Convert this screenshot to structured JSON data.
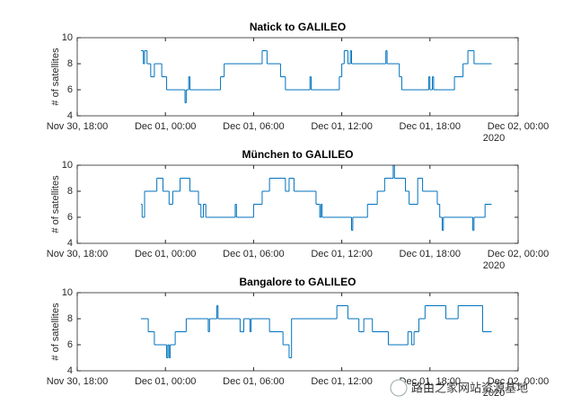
{
  "chart_data": [
    {
      "type": "line",
      "step": "post",
      "title": "Natick to GALILEO",
      "y_label": "# of satellites",
      "x_secondary_label": "2020",
      "xlim": [
        "2020-11-30T18:00",
        "2020-12-02T00:00"
      ],
      "xticks": [
        {
          "value": "2020-11-30T18:00",
          "label": "Nov 30, 18:00"
        },
        {
          "value": "2020-12-01T00:00",
          "label": "Dec 01, 00:00"
        },
        {
          "value": "2020-12-01T06:00",
          "label": "Dec 01, 06:00"
        },
        {
          "value": "2020-12-01T12:00",
          "label": "Dec 01, 12:00"
        },
        {
          "value": "2020-12-01T18:00",
          "label": "Dec 01, 18:00"
        },
        {
          "value": "2020-12-02T00:00",
          "label": "Dec 02, 00:00"
        }
      ],
      "ylim": [
        4,
        10
      ],
      "yticks": [
        4,
        6,
        8,
        10
      ],
      "grid": false,
      "color": "#0072bd",
      "x": [
        "2020-11-30T22:20",
        "2020-11-30T22:30",
        "2020-11-30T22:35",
        "2020-11-30T22:45",
        "2020-11-30T23:00",
        "2020-11-30T23:15",
        "2020-11-30T23:45",
        "2020-12-01T00:05",
        "2020-12-01T01:20",
        "2020-12-01T01:25",
        "2020-12-01T01:35",
        "2020-12-01T01:40",
        "2020-12-01T03:45",
        "2020-12-01T04:00",
        "2020-12-01T06:35",
        "2020-12-01T06:55",
        "2020-12-01T07:50",
        "2020-12-01T08:10",
        "2020-12-01T09:50",
        "2020-12-01T09:55",
        "2020-12-01T11:50",
        "2020-12-01T12:00",
        "2020-12-01T12:10",
        "2020-12-01T12:25",
        "2020-12-01T12:35",
        "2020-12-01T12:40",
        "2020-12-01T15:00",
        "2020-12-01T15:05",
        "2020-12-01T15:55",
        "2020-12-01T16:05",
        "2020-12-01T17:55",
        "2020-12-01T18:00",
        "2020-12-01T18:10",
        "2020-12-01T18:15",
        "2020-12-01T19:40",
        "2020-12-01T20:15",
        "2020-12-01T20:35",
        "2020-12-01T21:00",
        "2020-12-01T22:10"
      ],
      "values": [
        9,
        8,
        9,
        8,
        7,
        8,
        7,
        6,
        5,
        6,
        7,
        6,
        7,
        8,
        9,
        8,
        7,
        6,
        7,
        6,
        7,
        8,
        9,
        8,
        9,
        8,
        9,
        8,
        7,
        6,
        7,
        6,
        7,
        6,
        7,
        8,
        9,
        8,
        8
      ]
    },
    {
      "type": "line",
      "step": "post",
      "title": "München to GALILEO",
      "y_label": "# of satellites",
      "x_secondary_label": "2020",
      "xlim": [
        "2020-11-30T18:00",
        "2020-12-02T00:00"
      ],
      "xticks": [
        {
          "value": "2020-11-30T18:00",
          "label": "Nov 30, 18:00"
        },
        {
          "value": "2020-12-01T00:00",
          "label": "Dec 01, 00:00"
        },
        {
          "value": "2020-12-01T06:00",
          "label": "Dec 01, 06:00"
        },
        {
          "value": "2020-12-01T12:00",
          "label": "Dec 01, 12:00"
        },
        {
          "value": "2020-12-01T18:00",
          "label": "Dec 01, 18:00"
        },
        {
          "value": "2020-12-02T00:00",
          "label": "Dec 02, 00:00"
        }
      ],
      "ylim": [
        4,
        10
      ],
      "yticks": [
        4,
        6,
        8,
        10
      ],
      "grid": false,
      "color": "#0072bd",
      "x": [
        "2020-11-30T22:20",
        "2020-11-30T22:25",
        "2020-11-30T22:35",
        "2020-11-30T23:25",
        "2020-11-30T23:50",
        "2020-12-01T00:15",
        "2020-12-01T00:30",
        "2020-12-01T01:00",
        "2020-12-01T01:40",
        "2020-12-01T02:15",
        "2020-12-01T02:25",
        "2020-12-01T02:35",
        "2020-12-01T02:45",
        "2020-12-01T04:45",
        "2020-12-01T04:50",
        "2020-12-01T06:00",
        "2020-12-01T06:35",
        "2020-12-01T07:05",
        "2020-12-01T08:10",
        "2020-12-01T08:25",
        "2020-12-01T08:45",
        "2020-12-01T10:15",
        "2020-12-01T10:30",
        "2020-12-01T10:35",
        "2020-12-01T10:40",
        "2020-12-01T12:40",
        "2020-12-01T12:45",
        "2020-12-01T13:45",
        "2020-12-01T14:25",
        "2020-12-01T14:55",
        "2020-12-01T15:30",
        "2020-12-01T15:35",
        "2020-12-01T16:20",
        "2020-12-01T16:35",
        "2020-12-01T17:10",
        "2020-12-01T17:30",
        "2020-12-01T18:30",
        "2020-12-01T18:40",
        "2020-12-01T18:50",
        "2020-12-01T18:55",
        "2020-12-01T20:55",
        "2020-12-01T21:00",
        "2020-12-01T21:45",
        "2020-12-01T22:10"
      ],
      "values": [
        7,
        6,
        8,
        9,
        8,
        7,
        8,
        9,
        8,
        7,
        6,
        7,
        6,
        7,
        6,
        7,
        8,
        9,
        8,
        9,
        8,
        7,
        6,
        7,
        6,
        5,
        6,
        7,
        8,
        9,
        10,
        9,
        8,
        7,
        9,
        8,
        7,
        6,
        5,
        6,
        5,
        6,
        7,
        7
      ]
    },
    {
      "type": "line",
      "step": "post",
      "title": "Bangalore to GALILEO",
      "y_label": "# of satellites",
      "x_secondary_label": "2020",
      "xlim": [
        "2020-11-30T18:00",
        "2020-12-02T00:00"
      ],
      "xticks": [
        {
          "value": "2020-11-30T18:00",
          "label": "Nov 30, 18:00"
        },
        {
          "value": "2020-12-01T00:00",
          "label": "Dec 01, 00:00"
        },
        {
          "value": "2020-12-01T06:00",
          "label": "Dec 01, 06:00"
        },
        {
          "value": "2020-12-01T12:00",
          "label": "Dec 01, 12:00"
        },
        {
          "value": "2020-12-01T18:00",
          "label": "Dec 01, 18:00"
        },
        {
          "value": "2020-12-02T00:00",
          "label": "Dec 02, 00:00"
        }
      ],
      "ylim": [
        4,
        10
      ],
      "yticks": [
        4,
        6,
        8,
        10
      ],
      "grid": false,
      "color": "#0072bd",
      "x": [
        "2020-11-30T22:20",
        "2020-11-30T22:50",
        "2020-11-30T23:15",
        "2020-12-01T00:05",
        "2020-12-01T00:10",
        "2020-12-01T00:15",
        "2020-12-01T00:20",
        "2020-12-01T00:40",
        "2020-12-01T01:25",
        "2020-12-01T02:55",
        "2020-12-01T03:00",
        "2020-12-01T03:30",
        "2020-12-01T03:35",
        "2020-12-01T05:05",
        "2020-12-01T05:20",
        "2020-12-01T05:45",
        "2020-12-01T05:50",
        "2020-12-01T07:05",
        "2020-12-01T08:00",
        "2020-12-01T08:25",
        "2020-12-01T08:35",
        "2020-12-01T11:40",
        "2020-12-01T12:25",
        "2020-12-01T13:10",
        "2020-12-01T13:30",
        "2020-12-01T14:05",
        "2020-12-01T15:10",
        "2020-12-01T16:30",
        "2020-12-01T16:45",
        "2020-12-01T16:55",
        "2020-12-01T17:15",
        "2020-12-01T17:40",
        "2020-12-01T19:05",
        "2020-12-01T19:55",
        "2020-12-01T21:35",
        "2020-12-01T22:10"
      ],
      "values": [
        8,
        7,
        6,
        5,
        6,
        5,
        6,
        7,
        8,
        7,
        8,
        9,
        8,
        7,
        8,
        7,
        8,
        7,
        6,
        5,
        8,
        9,
        8,
        7,
        8,
        7,
        6,
        7,
        6,
        7,
        8,
        9,
        8,
        9,
        7,
        7
      ]
    }
  ],
  "watermark": "路由之家网站资源基地"
}
